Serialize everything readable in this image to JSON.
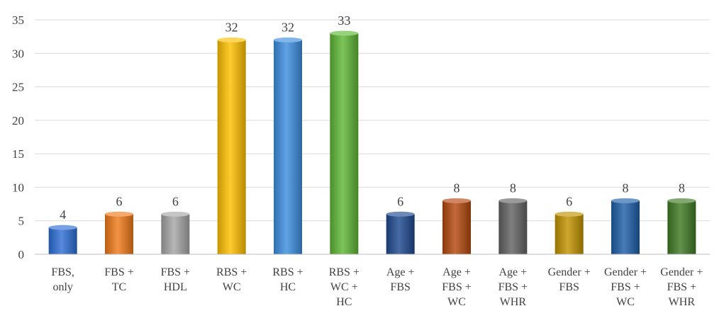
{
  "chart_data": {
    "type": "bar",
    "title": "",
    "xlabel": "",
    "ylabel": "",
    "ylim": [
      0,
      35
    ],
    "yticks": [
      0,
      5,
      10,
      15,
      20,
      25,
      30,
      35
    ],
    "grid": true,
    "legend": "none",
    "categories": [
      "FBS, only",
      "FBS + TC",
      "FBS + HDL",
      "RBS + WC",
      "RBS + HC",
      "RBS + WC + HC",
      "Age + FBS",
      "Age + FBS + WC",
      "Age + FBS + WHR",
      "Gender + FBS",
      "Gender + FBS + WC",
      "Gender + FBS + WHR"
    ],
    "category_lines": [
      [
        "FBS,",
        "only"
      ],
      [
        "FBS +",
        "TC"
      ],
      [
        "FBS +",
        "HDL"
      ],
      [
        "RBS +",
        "WC"
      ],
      [
        "RBS +",
        "HC"
      ],
      [
        "RBS +",
        "WC +",
        "HC"
      ],
      [
        "Age +",
        "FBS"
      ],
      [
        "Age +",
        "FBS +",
        "WC"
      ],
      [
        "Age +",
        "FBS +",
        "WHR"
      ],
      [
        "Gender +",
        "FBS"
      ],
      [
        "Gender +",
        "FBS +",
        "WC"
      ],
      [
        "Gender +",
        "FBS +",
        "WHR"
      ]
    ],
    "values": [
      4,
      6,
      6,
      32,
      32,
      33,
      6,
      8,
      8,
      6,
      8,
      8
    ],
    "colors": [
      "#2e6fd6",
      "#f07a1a",
      "#a6a6a6",
      "#ffc000",
      "#3d8fe0",
      "#5fb836",
      "#1f4a90",
      "#b5480f",
      "#636363",
      "#c29300",
      "#1f5fa8",
      "#3f7a25"
    ]
  }
}
